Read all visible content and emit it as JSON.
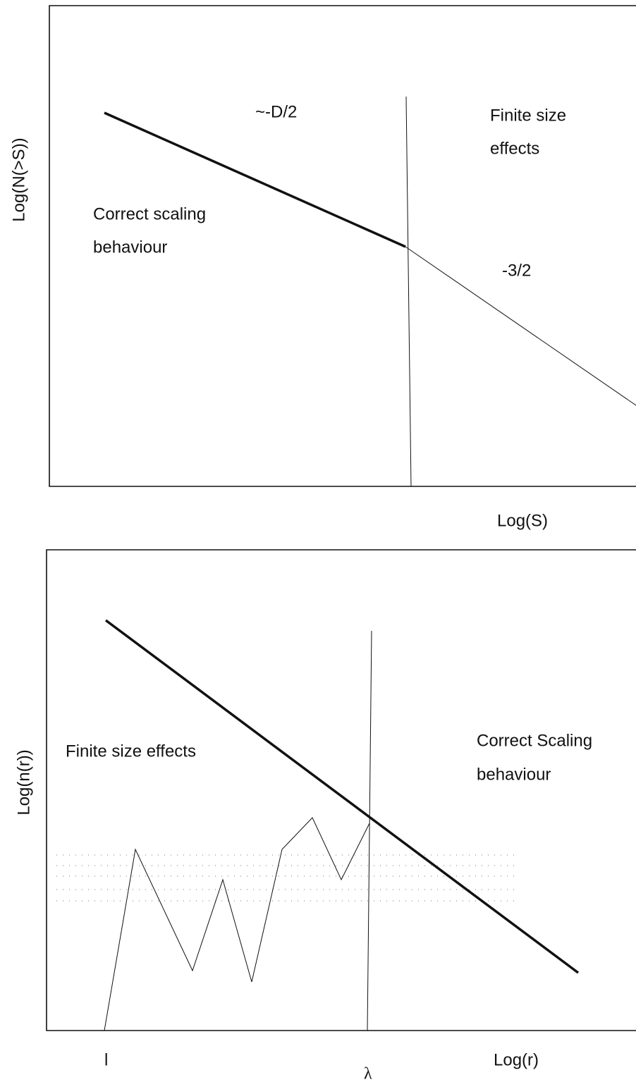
{
  "top_panel": {
    "y_label": "Log(N(>S))",
    "x_label": "Log(S)",
    "slope_left": "~-D/2",
    "region_right_line1": "Finite size",
    "region_right_line2": "effects",
    "region_left_line1": "Correct scaling",
    "region_left_line2": "behaviour",
    "slope_right": "-3/2"
  },
  "bottom_panel": {
    "y_label": "Log(n(r))",
    "x_label": "Log(r)",
    "region_left": "Finite size effects",
    "region_right_line1": "Correct Scaling",
    "region_right_line2": "behaviour",
    "x_mark_left": "l",
    "x_mark_lambda": "λ"
  }
}
